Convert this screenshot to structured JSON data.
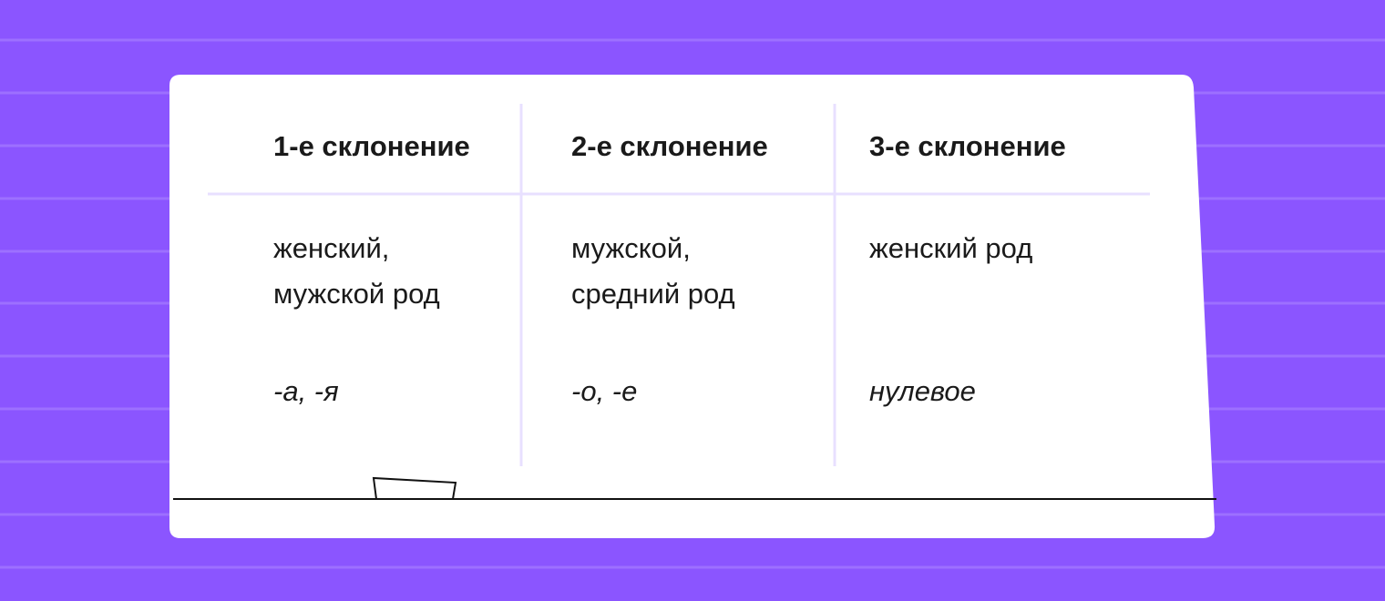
{
  "colors": {
    "background": "#8b55ff",
    "card": "#ffffff",
    "divider": "#e8e0ff",
    "text": "#1a1a1a"
  },
  "table": {
    "headers": [
      "1-е склонение",
      "2-е склонение",
      "3-е склонение"
    ],
    "rows": [
      [
        "женский,\nмужской род",
        "мужской,\nсредний род",
        "женский род"
      ],
      [
        "-а, -я",
        "-о, -е",
        "нулевое"
      ]
    ]
  }
}
